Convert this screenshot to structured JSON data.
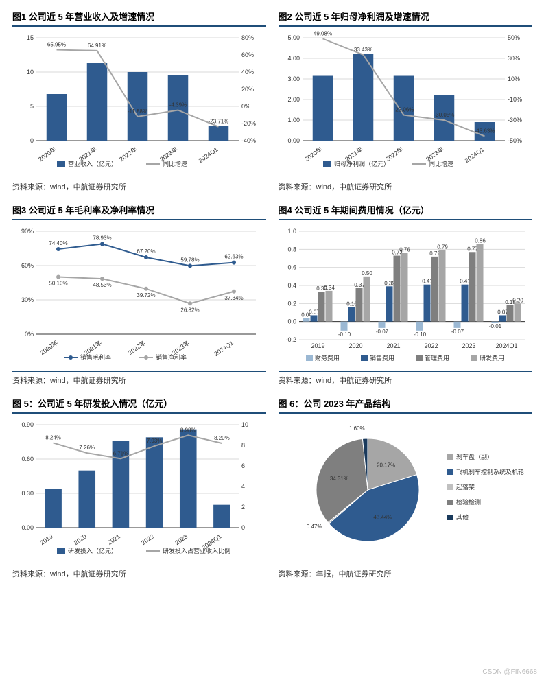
{
  "watermark": "CSDN @FIN6668",
  "colors": {
    "bar": "#2f5b8f",
    "line_gray": "#a6a6a6",
    "line_dark": "#2f5b8f",
    "grid": "#d9d9d9",
    "border": "#1f4e79"
  },
  "chart1": {
    "title": "图1  公司近 5 年营业收入及增速情况",
    "source": "资料来源：wind，中航证券研究所",
    "cats": [
      "2020年",
      "2021年",
      "2022年",
      "2023年",
      "2024Q1"
    ],
    "bars": [
      6.8,
      11.3,
      10.0,
      9.5,
      2.2
    ],
    "line": [
      65.95,
      64.91,
      -11.88,
      -4.39,
      -23.71
    ],
    "line_labels": [
      "65.95%",
      "64.91%",
      "-11.88%",
      "-4.39%",
      "-23.71%"
    ],
    "yL": {
      "min": 0,
      "max": 15,
      "step": 5
    },
    "yR": {
      "min": -40,
      "max": 80,
      "step": 20
    },
    "legend": [
      "营业收入（亿元）",
      "同比增速"
    ]
  },
  "chart2": {
    "title": "图2  公司近 5 年归母净利润及增速情况",
    "source": "资料来源：wind，中航证券研究所",
    "cats": [
      "2020年",
      "2021年",
      "2022年",
      "2023年",
      "2024Q1"
    ],
    "bars": [
      3.15,
      4.2,
      3.15,
      2.2,
      0.9
    ],
    "line": [
      49.08,
      33.43,
      -25.06,
      -30.05,
      -45.63
    ],
    "line_labels": [
      "49.08%",
      "33.43%",
      "-25.06%",
      "-30.05%",
      "-45.63%"
    ],
    "yL": {
      "min": 0,
      "max": 5,
      "step": 1
    },
    "yR": {
      "min": -50,
      "max": 50,
      "step": 20
    },
    "legend": [
      "归母净利润（亿元）",
      "同比增速"
    ]
  },
  "chart3": {
    "title": "图3  公司近 5 年毛利率及净利率情况",
    "source": "资料来源：wind，中航证券研究所",
    "cats": [
      "2020年",
      "2021年",
      "2022年",
      "2023年",
      "2024Q1"
    ],
    "line1": [
      74.4,
      78.93,
      67.2,
      59.78,
      62.63
    ],
    "line1_labels": [
      "74.40%",
      "78.93%",
      "67.20%",
      "59.78%",
      "62.63%"
    ],
    "line2": [
      50.1,
      48.53,
      39.72,
      26.82,
      37.34
    ],
    "line2_labels": [
      "50.10%",
      "48.53%",
      "39.72%",
      "26.82%",
      "37.34%"
    ],
    "yL": {
      "min": 0,
      "max": 90,
      "step": 30
    },
    "legend": [
      "销售毛利率",
      "销售净利率"
    ]
  },
  "chart4": {
    "title": "图4  公司近 5 年期间费用情况（亿元）",
    "source": "资料来源：wind，中航证券研究所",
    "cats": [
      "2019",
      "2020",
      "2021",
      "2022",
      "2023",
      "2024Q1"
    ],
    "series": [
      {
        "name": "财务费用",
        "color": "#9bb8d3",
        "vals": [
          0.04,
          -0.1,
          -0.07,
          -0.1,
          -0.07,
          -0.01
        ]
      },
      {
        "name": "销售费用",
        "color": "#2f5b8f",
        "vals": [
          0.07,
          0.16,
          0.39,
          0.41,
          0.41,
          0.07
        ]
      },
      {
        "name": "管理费用",
        "color": "#7f7f7f",
        "vals": [
          0.33,
          0.37,
          0.73,
          0.72,
          0.77,
          0.18
        ]
      },
      {
        "name": "研发费用",
        "color": "#a6a6a6",
        "vals": [
          0.34,
          0.5,
          0.76,
          0.79,
          0.86,
          0.2
        ]
      }
    ],
    "labels": [
      [
        "0.04",
        "0.07",
        "0.33",
        "0.34"
      ],
      [
        "-0.10",
        "0.16",
        "0.37",
        "0.50"
      ],
      [
        "-0.07",
        "0.39",
        "0.73",
        "0.76"
      ],
      [
        "-0.10",
        "0.41",
        "0.72",
        "0.79"
      ],
      [
        "-0.07",
        "0.41",
        "0.77",
        "0.86"
      ],
      [
        "-0.01",
        "0.07",
        "0.18",
        "0.20"
      ]
    ],
    "yL": {
      "min": -0.2,
      "max": 1.0,
      "step": 0.2
    }
  },
  "chart5": {
    "title": "图 5：公司近 5 年研发投入情况（亿元）",
    "source": "资料来源：wind，中航证券研究所",
    "cats": [
      "2019",
      "2020",
      "2021",
      "2022",
      "2023",
      "2024Q1"
    ],
    "bars": [
      0.34,
      0.5,
      0.76,
      0.79,
      0.86,
      0.2
    ],
    "line": [
      8.24,
      7.26,
      6.71,
      7.93,
      8.98,
      8.2
    ],
    "line_labels": [
      "8.24%",
      "7.26%",
      "6.71%",
      "7.93%",
      "8.98%",
      "8.20%"
    ],
    "yL": {
      "min": 0,
      "max": 0.9,
      "step": 0.3
    },
    "yR": {
      "min": 0,
      "max": 10,
      "step": 2
    },
    "legend": [
      "研发投入（亿元）",
      "研发投入占营业收入比例"
    ]
  },
  "chart6": {
    "title": "图 6：公司 2023 年产品结构",
    "source": "资料来源：年报，中航证券研究所",
    "slices": [
      {
        "name": "刹车盘（副）",
        "val": 20.17,
        "color": "#a6a6a6"
      },
      {
        "name": "飞机刹车控制系统及机轮",
        "val": 43.44,
        "color": "#2f5b8f"
      },
      {
        "name": "起落架",
        "val": 0.47,
        "color": "#c0c0c0"
      },
      {
        "name": "检验检测",
        "val": 34.31,
        "color": "#7f7f7f"
      },
      {
        "name": "其他",
        "val": 1.6,
        "color": "#1a3a5c"
      }
    ],
    "labels": [
      "20.17%",
      "43.44%",
      "0.47%",
      "34.31%",
      "1.60%"
    ]
  }
}
